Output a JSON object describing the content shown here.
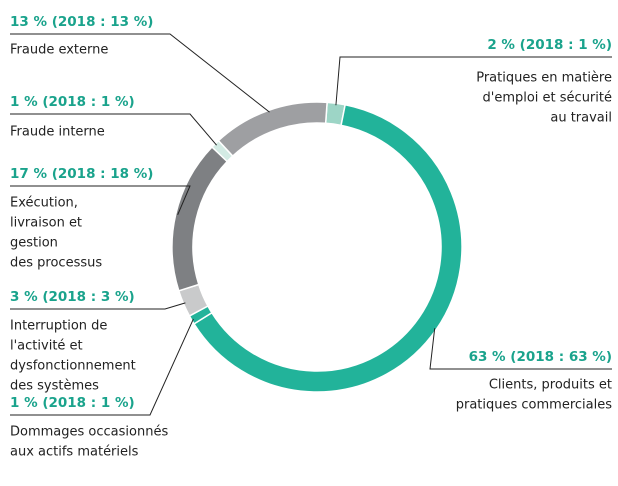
{
  "chart_data": {
    "type": "donut",
    "categories": [
      [
        "Pratiques en matière",
        "d'emploi et sécurité",
        "au travail"
      ],
      [
        "Clients, produits et",
        "pratiques commerciales"
      ],
      [
        "Dommages occasionnés",
        "aux actifs matériels"
      ],
      [
        "Interruption de",
        "l'activité et",
        "dysfonctionnement",
        "des systèmes"
      ],
      [
        "Exécution,",
        "livraison et",
        "gestion",
        "des processus"
      ],
      [
        "Fraude interne"
      ],
      [
        "Fraude externe"
      ]
    ],
    "values": [
      2,
      63,
      1,
      3,
      17,
      1,
      13
    ],
    "value_labels": [
      "2 % (2018 : 1 %)",
      "63 % (2018 : 63 %)",
      "1 % (2018 : 1 %)",
      "3 % (2018 : 3 %)",
      "17 % (2018 : 18 %)",
      "1 % (2018 : 1 %)",
      "13 % (2018 : 13 %)"
    ],
    "colors": [
      "#9dd5c6",
      "#22b39a",
      "#22b39a",
      "#c9cacb",
      "#7e8083",
      "#d3ebe4",
      "#9e9fa2"
    ]
  }
}
